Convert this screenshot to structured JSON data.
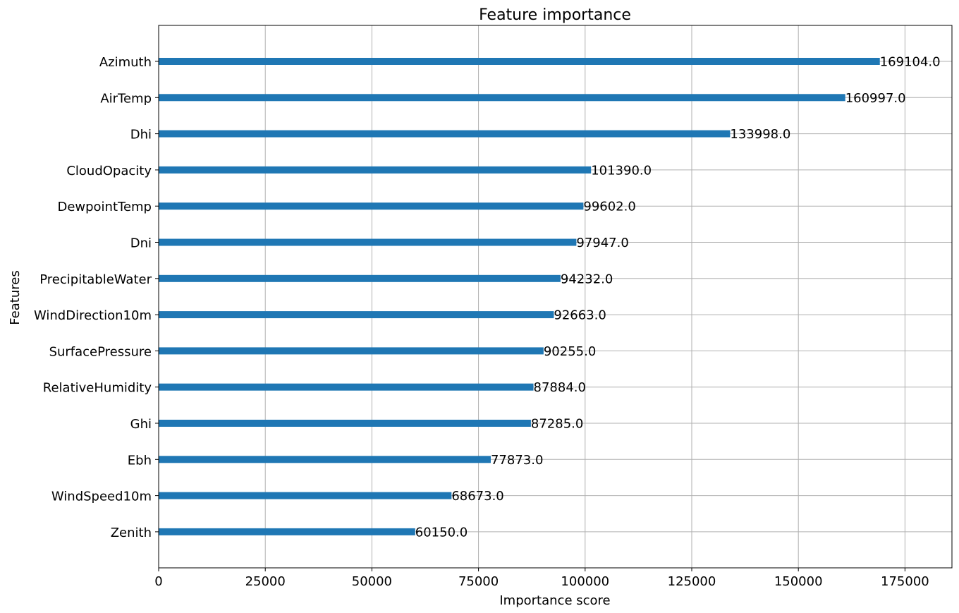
{
  "chart_data": {
    "type": "bar",
    "orientation": "horizontal",
    "title": "Feature importance",
    "xlabel": "Importance score",
    "ylabel": "Features",
    "xlim": [
      0,
      186014
    ],
    "xticks": [
      0,
      25000,
      50000,
      75000,
      100000,
      125000,
      150000,
      175000
    ],
    "grid": true,
    "bar_color": "#1f77b4",
    "categories": [
      "Azimuth",
      "AirTemp",
      "Dhi",
      "CloudOpacity",
      "DewpointTemp",
      "Dni",
      "PrecipitableWater",
      "WindDirection10m",
      "SurfacePressure",
      "RelativeHumidity",
      "Ghi",
      "Ebh",
      "WindSpeed10m",
      "Zenith"
    ],
    "values": [
      169104.0,
      160997.0,
      133998.0,
      101390.0,
      99602.0,
      97947.0,
      94232.0,
      92663.0,
      90255.0,
      87884.0,
      87285.0,
      77873.0,
      68673.0,
      60150.0
    ],
    "value_labels": [
      "169104.0",
      "160997.0",
      "133998.0",
      "101390.0",
      "99602.0",
      "97947.0",
      "94232.0",
      "92663.0",
      "90255.0",
      "87884.0",
      "87285.0",
      "77873.0",
      "68673.0",
      "60150.0"
    ]
  }
}
